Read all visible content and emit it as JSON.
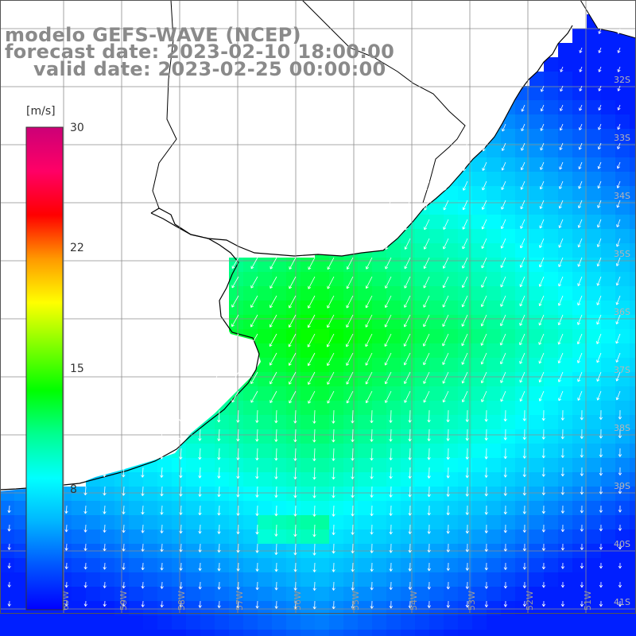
{
  "title": {
    "model": "modelo GEFS-WAVE (NCEP)",
    "forecast": "forecast date: 2023-02-10 18:00:00",
    "valid": "valid date: 2023-02-25 00:00:00"
  },
  "colorbar": {
    "unit": "[m/s]",
    "min": 0,
    "max": 30,
    "ticks": [
      "30",
      "22",
      "15",
      "8"
    ],
    "tick_values": [
      30,
      22,
      15,
      8
    ],
    "colors": [
      "#0000ff",
      "#0055ff",
      "#00b5ff",
      "#00ffff",
      "#00ff90",
      "#00ff00",
      "#7fff00",
      "#ffff00",
      "#ff9900",
      "#ff0000",
      "#ff0066",
      "#cc0077"
    ]
  },
  "map": {
    "lat_labels": [
      "32S",
      "33S",
      "34S",
      "35S",
      "36S",
      "37S",
      "38S",
      "39S",
      "40S",
      "41S"
    ],
    "lat_values": [
      -32,
      -33,
      -34,
      -35,
      -36,
      -37,
      -38,
      -39,
      -40,
      -41
    ],
    "lon_labels": [
      "60W",
      "59W",
      "58W",
      "57W",
      "56W",
      "55W",
      "54W",
      "53W",
      "52W",
      "51W"
    ],
    "lon_values": [
      -60,
      -59,
      -58,
      -57,
      -56,
      -55,
      -54,
      -53,
      -52,
      -51
    ],
    "land_color": "#ffffff",
    "coast_color": "#000000",
    "grid_color": "#8c8c8c",
    "arrow_color": "#ffffff"
  }
}
